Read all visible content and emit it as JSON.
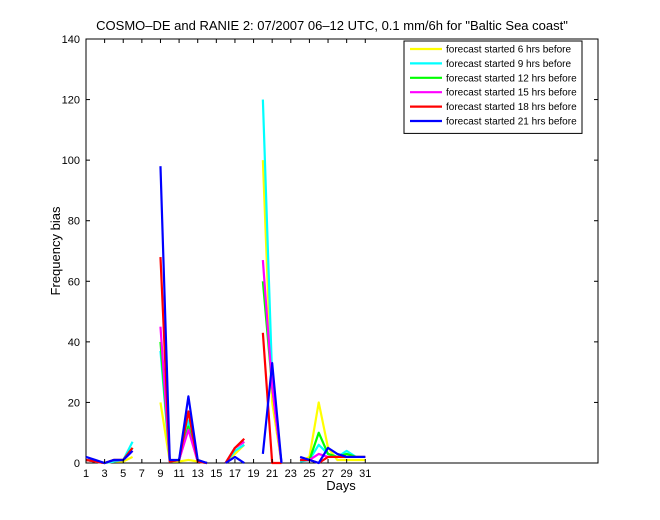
{
  "chart_data": {
    "type": "line",
    "title": "COSMO–DE and RANIE 2: 07/2007 06–12 UTC, 0.1 mm/6h for \"Baltic Sea coast\"",
    "xlabel": "Days",
    "ylabel": "Frequency bias",
    "xlim": [
      1,
      56
    ],
    "ylim": [
      0,
      140
    ],
    "x_ticks": [
      1,
      3,
      5,
      7,
      9,
      11,
      13,
      15,
      17,
      19,
      21,
      23,
      25,
      27,
      29,
      31
    ],
    "y_ticks": [
      0,
      20,
      40,
      60,
      80,
      100,
      120,
      140
    ],
    "grid": false,
    "legend_position": "top-right",
    "series": [
      {
        "name": "forecast started 6 hrs before",
        "color": "#ffff00",
        "segments": [
          [
            [
              1,
              1
            ],
            [
              2,
              0.5
            ],
            [
              3,
              0
            ],
            [
              4,
              0.5
            ],
            [
              5,
              0.5
            ],
            [
              6,
              2
            ]
          ],
          [
            [
              9,
              20
            ],
            [
              10,
              0.5
            ],
            [
              11,
              0.5
            ],
            [
              12,
              1
            ],
            [
              13,
              0.5
            ],
            [
              14,
              0
            ]
          ],
          [
            [
              16,
              0
            ],
            [
              17,
              3
            ],
            [
              18,
              6
            ]
          ],
          [
            [
              20,
              100
            ],
            [
              21,
              20
            ],
            [
              22,
              0
            ]
          ],
          [
            [
              24,
              0.5
            ],
            [
              25,
              2
            ],
            [
              26,
              20
            ],
            [
              27,
              5
            ],
            [
              28,
              1
            ],
            [
              29,
              1
            ],
            [
              30,
              1
            ],
            [
              31,
              1
            ]
          ]
        ]
      },
      {
        "name": "forecast started 9 hrs before",
        "color": "#00ffff",
        "segments": [
          [
            [
              1,
              1
            ],
            [
              2,
              0.5
            ],
            [
              3,
              0
            ],
            [
              4,
              0.5
            ],
            [
              5,
              1
            ],
            [
              6,
              7
            ]
          ],
          [
            [
              9,
              37
            ],
            [
              10,
              0.5
            ],
            [
              11,
              1
            ],
            [
              12,
              14
            ],
            [
              13,
              0.5
            ],
            [
              14,
              0
            ]
          ],
          [
            [
              16,
              0
            ],
            [
              17,
              4
            ],
            [
              18,
              6
            ]
          ],
          [
            [
              20,
              120
            ],
            [
              21,
              28
            ],
            [
              22,
              0
            ]
          ],
          [
            [
              24,
              0.5
            ],
            [
              25,
              1
            ],
            [
              26,
              6
            ],
            [
              27,
              3
            ],
            [
              28,
              2
            ],
            [
              29,
              4
            ],
            [
              30,
              2
            ],
            [
              31,
              2
            ]
          ]
        ]
      },
      {
        "name": "forecast started 12 hrs before",
        "color": "#00ff00",
        "segments": [
          [
            [
              1,
              1
            ],
            [
              2,
              0.5
            ],
            [
              3,
              0
            ],
            [
              4,
              1
            ],
            [
              5,
              1
            ],
            [
              6,
              5
            ]
          ],
          [
            [
              9,
              40
            ],
            [
              10,
              0.5
            ],
            [
              11,
              1
            ],
            [
              12,
              12
            ],
            [
              13,
              0.5
            ],
            [
              14,
              0
            ]
          ],
          [
            [
              16,
              0
            ],
            [
              17,
              5
            ],
            [
              18,
              7
            ]
          ],
          [
            [
              20,
              60
            ],
            [
              21,
              25
            ],
            [
              22,
              0
            ]
          ],
          [
            [
              24,
              1
            ],
            [
              25,
              1
            ],
            [
              26,
              10
            ],
            [
              27,
              3
            ],
            [
              28,
              2
            ],
            [
              29,
              3
            ],
            [
              30,
              2
            ],
            [
              31,
              2
            ]
          ]
        ]
      },
      {
        "name": "forecast started 15 hrs before",
        "color": "#ff00ff",
        "segments": [
          [
            [
              1,
              1
            ],
            [
              2,
              0.5
            ],
            [
              3,
              0
            ],
            [
              4,
              1
            ],
            [
              5,
              1
            ],
            [
              6,
              4
            ]
          ],
          [
            [
              9,
              45
            ],
            [
              10,
              0.5
            ],
            [
              11,
              1
            ],
            [
              12,
              11
            ],
            [
              13,
              0.5
            ],
            [
              14,
              0
            ]
          ],
          [
            [
              16,
              0
            ],
            [
              17,
              5
            ],
            [
              18,
              7
            ]
          ],
          [
            [
              20,
              67
            ],
            [
              21,
              25
            ],
            [
              22,
              0
            ]
          ],
          [
            [
              24,
              1
            ],
            [
              25,
              1
            ],
            [
              26,
              3
            ],
            [
              27,
              2
            ],
            [
              28,
              2
            ],
            [
              29,
              2
            ],
            [
              30,
              2
            ],
            [
              31,
              2
            ]
          ]
        ]
      },
      {
        "name": "forecast started 18 hrs before",
        "color": "#ff0000",
        "segments": [
          [
            [
              1,
              1
            ],
            [
              2,
              0.5
            ],
            [
              3,
              0
            ],
            [
              4,
              1
            ],
            [
              5,
              1
            ],
            [
              6,
              5
            ]
          ],
          [
            [
              9,
              68
            ],
            [
              10,
              0.5
            ],
            [
              11,
              1
            ],
            [
              12,
              17
            ],
            [
              13,
              0.5
            ],
            [
              14,
              0
            ]
          ],
          [
            [
              16,
              0
            ],
            [
              17,
              5
            ],
            [
              18,
              8
            ]
          ],
          [
            [
              20,
              43
            ],
            [
              21,
              0
            ],
            [
              22,
              0
            ]
          ],
          [
            [
              24,
              1
            ],
            [
              25,
              1
            ],
            [
              26,
              0
            ],
            [
              27,
              2
            ],
            [
              28,
              2
            ],
            [
              29,
              2
            ],
            [
              30,
              2
            ],
            [
              31,
              2
            ]
          ]
        ]
      },
      {
        "name": "forecast started 21 hrs before",
        "color": "#0000ff",
        "segments": [
          [
            [
              1,
              2
            ],
            [
              2,
              1
            ],
            [
              3,
              0
            ],
            [
              4,
              1
            ],
            [
              5,
              1
            ],
            [
              6,
              4
            ]
          ],
          [
            [
              9,
              98
            ],
            [
              10,
              1
            ],
            [
              11,
              1
            ],
            [
              12,
              22
            ],
            [
              13,
              1
            ],
            [
              14,
              0
            ]
          ],
          [
            [
              16,
              0
            ],
            [
              17,
              2
            ],
            [
              18,
              0
            ]
          ],
          [
            [
              20,
              3
            ],
            [
              21,
              33
            ],
            [
              22,
              0
            ]
          ],
          [
            [
              24,
              2
            ],
            [
              25,
              1
            ],
            [
              26,
              0
            ],
            [
              27,
              5
            ],
            [
              28,
              3
            ],
            [
              29,
              2
            ],
            [
              30,
              2
            ],
            [
              31,
              2
            ]
          ]
        ]
      }
    ]
  }
}
